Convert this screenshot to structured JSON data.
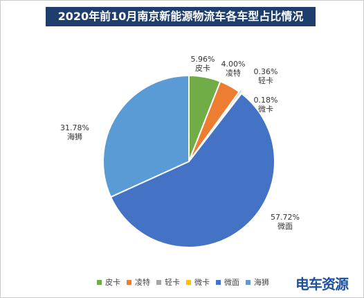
{
  "chart_data": {
    "type": "pie",
    "title": "2020年前10月南京新能源物流车各车型占比情况",
    "slices": [
      {
        "name": "皮卡",
        "value": 5.96,
        "label": "5.96%",
        "color": "#70ad47"
      },
      {
        "name": "凌特",
        "value": 4.0,
        "label": "4.00%",
        "color": "#ed7d31"
      },
      {
        "name": "轻卡",
        "value": 0.36,
        "label": "0.36%",
        "color": "#a5a5a5"
      },
      {
        "name": "微卡",
        "value": 0.18,
        "label": "0.18%",
        "color": "#ffc000"
      },
      {
        "name": "微面",
        "value": 57.72,
        "label": "57.72%",
        "color": "#4472c4"
      },
      {
        "name": "海狮",
        "value": 31.78,
        "label": "31.78%",
        "color": "#5b9bd5"
      }
    ],
    "legend_position": "bottom"
  },
  "watermark": "电车资源"
}
